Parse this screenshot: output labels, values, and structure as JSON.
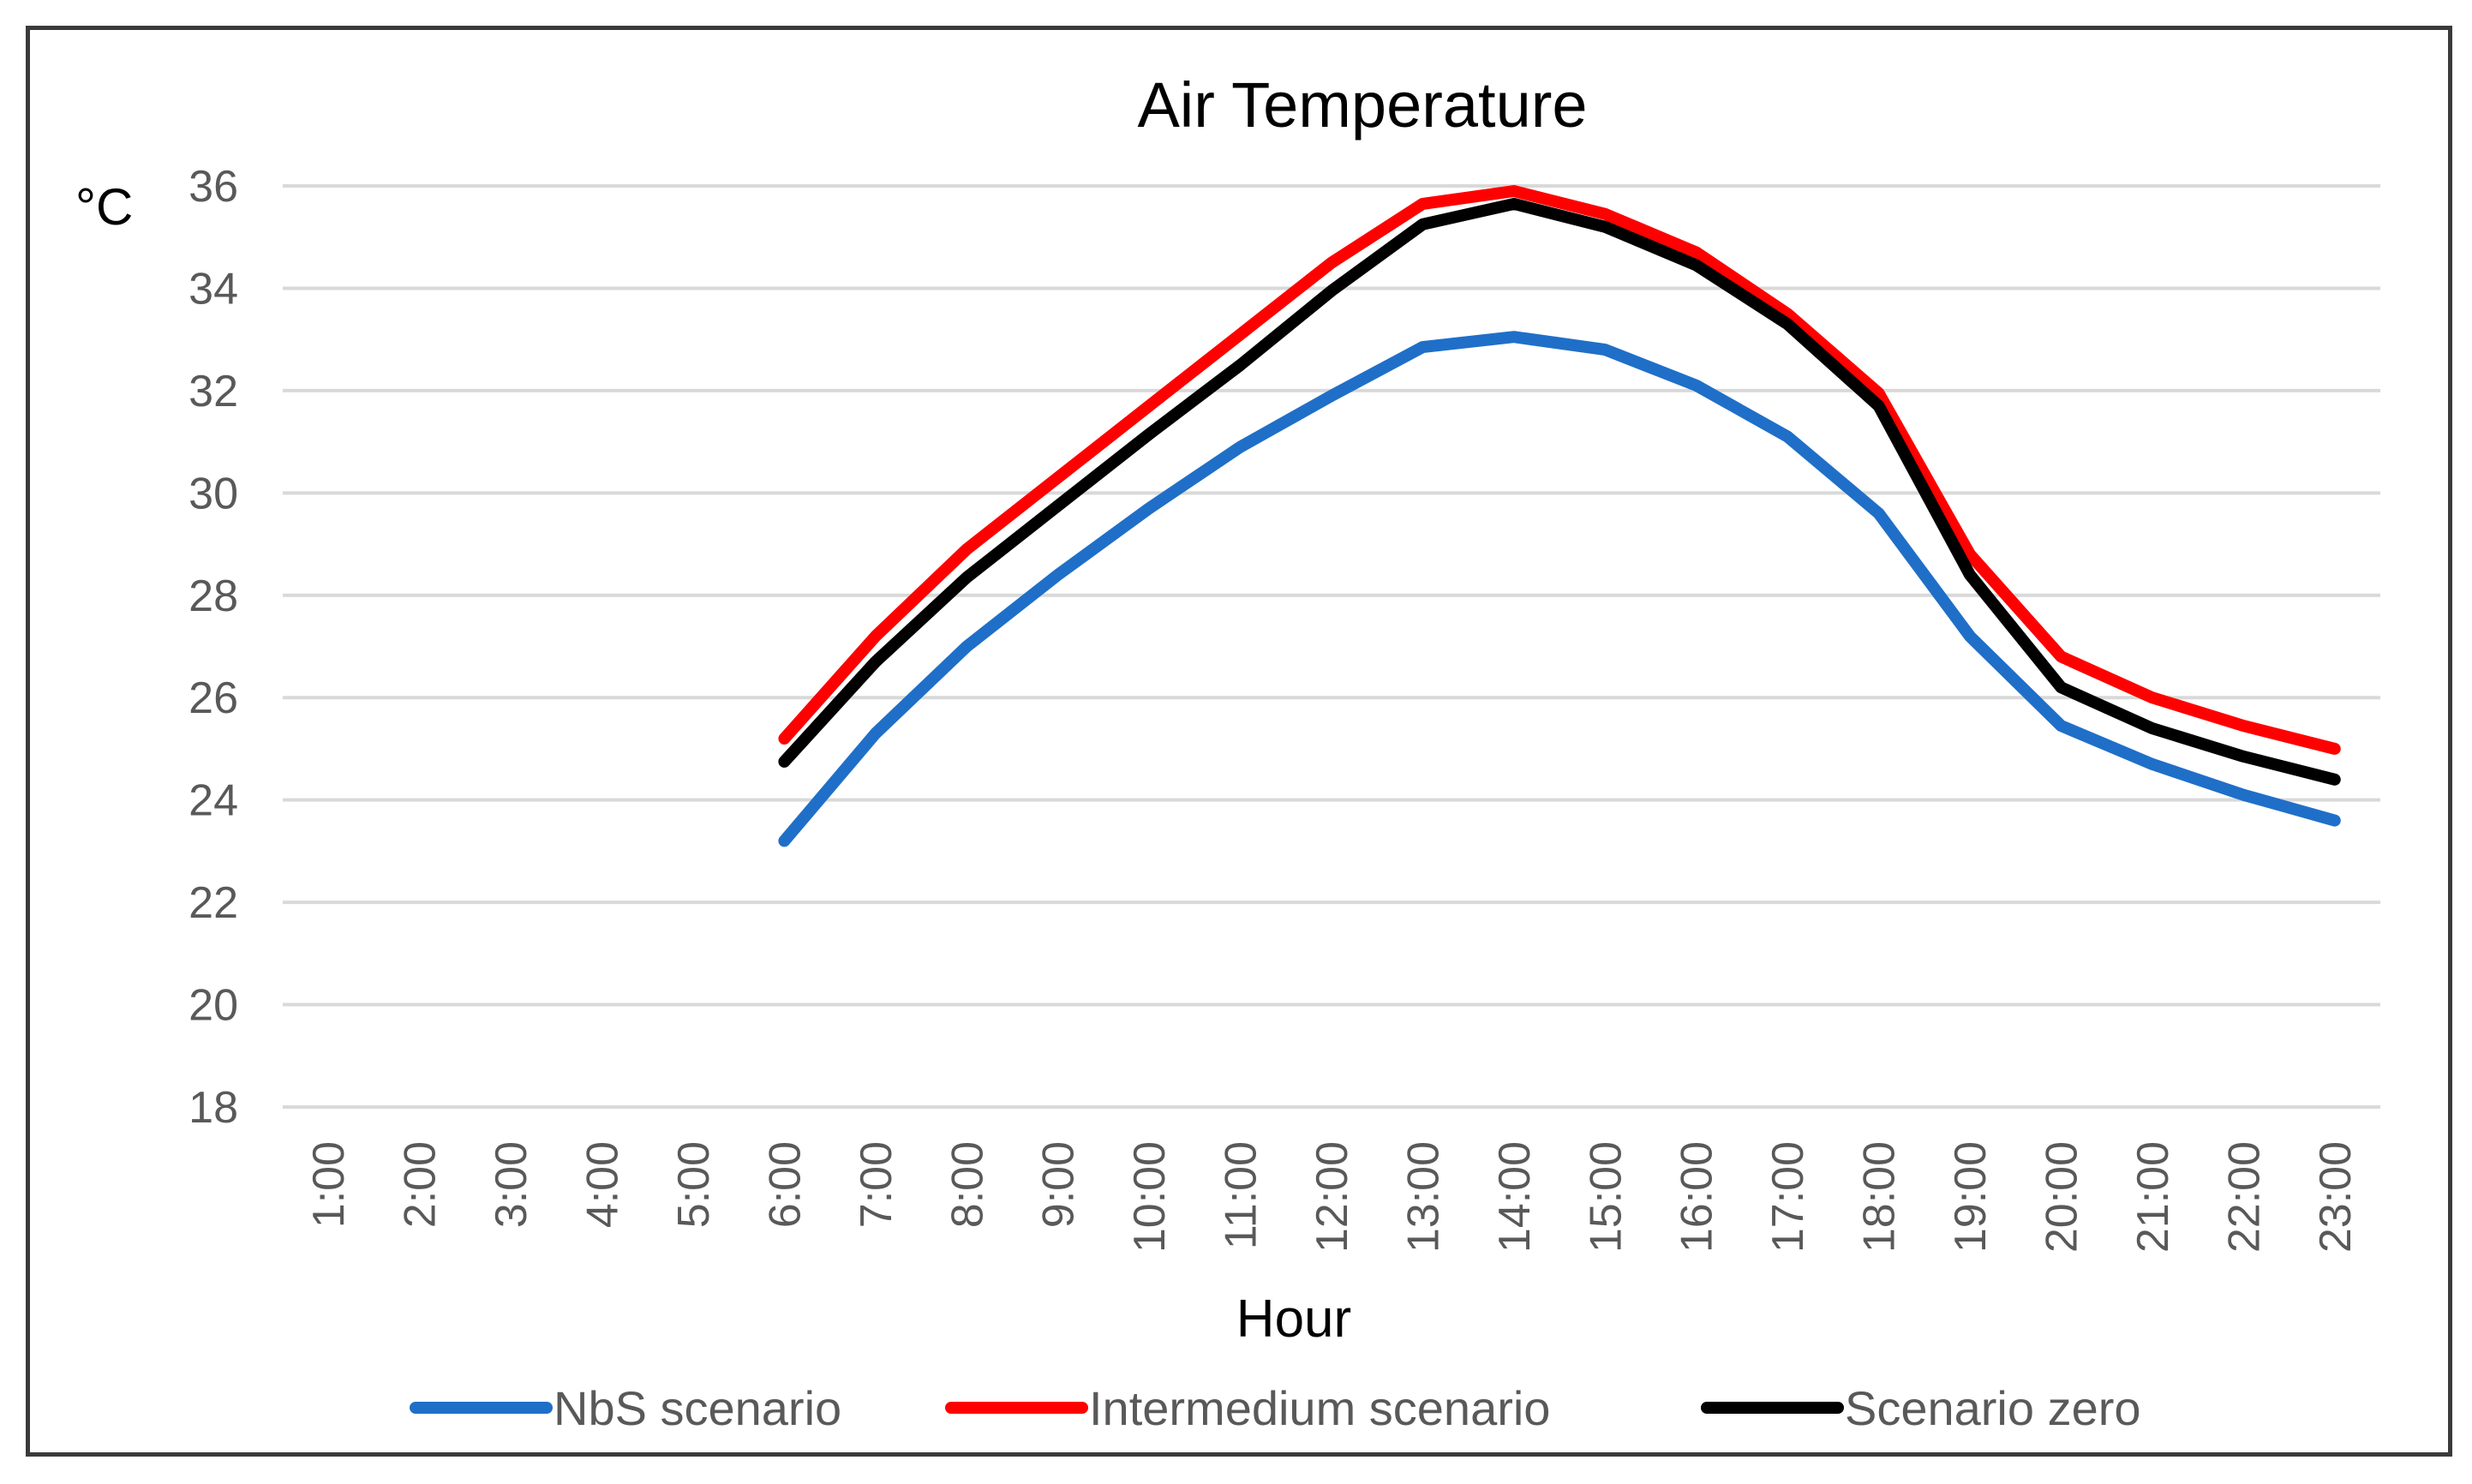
{
  "chart_data": {
    "type": "line",
    "title": "Air Temperature",
    "unit_label": "°C",
    "xlabel": "Hour",
    "ylabel": "°C",
    "ylim": [
      18,
      36
    ],
    "yticks": [
      18,
      20,
      22,
      24,
      26,
      28,
      30,
      32,
      34,
      36
    ],
    "grid": true,
    "legend_position": "bottom",
    "categories": [
      "1:00",
      "2:00",
      "3:00",
      "4:00",
      "5:00",
      "6:00",
      "7:00",
      "8:00",
      "9:00",
      "10:00",
      "11:00",
      "12:00",
      "13:00",
      "14:00",
      "15:00",
      "16:00",
      "17:00",
      "18:00",
      "19:00",
      "20:00",
      "21:00",
      "22:00",
      "23:00"
    ],
    "series": [
      {
        "name": "NbS scenario",
        "color": "#1f6fc8",
        "values": [
          null,
          null,
          null,
          null,
          null,
          23.2,
          25.3,
          27.0,
          28.4,
          29.7,
          30.9,
          31.9,
          32.85,
          33.05,
          32.8,
          32.1,
          31.1,
          29.6,
          27.2,
          25.45,
          24.7,
          24.1,
          23.6
        ]
      },
      {
        "name": "Intermedium scenario",
        "color": "#ff0000",
        "values": [
          null,
          null,
          null,
          null,
          null,
          25.2,
          27.2,
          28.9,
          30.3,
          31.7,
          33.1,
          34.5,
          35.65,
          35.9,
          35.45,
          34.7,
          33.5,
          31.95,
          28.8,
          26.8,
          26.0,
          25.45,
          25.0
        ]
      },
      {
        "name": "Scenario zero",
        "color": "#000000",
        "values": [
          null,
          null,
          null,
          null,
          null,
          24.75,
          26.7,
          28.35,
          29.75,
          31.15,
          32.5,
          33.95,
          35.25,
          35.65,
          35.2,
          34.45,
          33.3,
          31.7,
          28.4,
          26.2,
          25.4,
          24.85,
          24.4
        ]
      }
    ]
  }
}
